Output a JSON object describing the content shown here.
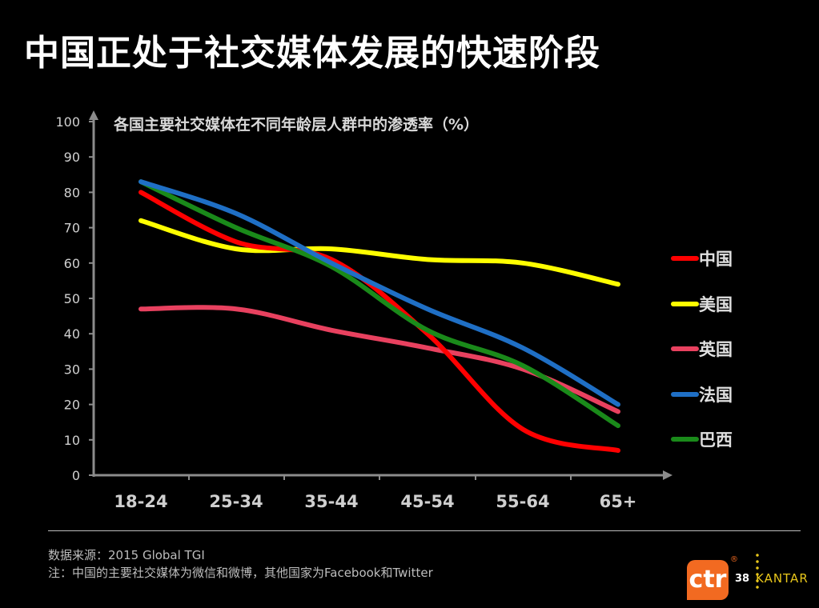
{
  "slide": {
    "title": "中国正处于社交媒体发展的快速阶段",
    "page_number": "38"
  },
  "chart_data": {
    "type": "line",
    "title": "各国主要社交媒体在不同年龄层人群中的渗透率（%）",
    "categories": [
      "18-24",
      "25-34",
      "35-44",
      "45-54",
      "55-64",
      "65+"
    ],
    "ylim": [
      0,
      100
    ],
    "yticks": [
      0,
      10,
      20,
      30,
      40,
      50,
      60,
      70,
      80,
      90,
      100
    ],
    "grid": false,
    "legend_position": "right",
    "series": [
      {
        "name": "中国",
        "color": "#ff0000",
        "values": [
          80,
          66,
          61,
          40,
          13,
          7
        ]
      },
      {
        "name": "美国",
        "color": "#ffff00",
        "values": [
          72,
          64,
          64,
          61,
          60,
          54
        ]
      },
      {
        "name": "英国",
        "color": "#e8415f",
        "values": [
          47,
          47,
          41,
          36,
          30,
          18
        ]
      },
      {
        "name": "法国",
        "color": "#1f6fc5",
        "values": [
          83,
          74,
          60,
          47,
          36,
          20
        ]
      },
      {
        "name": "巴西",
        "color": "#1a8a1a",
        "values": [
          83,
          70,
          59,
          41,
          31,
          14
        ]
      }
    ]
  },
  "footer": {
    "source": "数据来源：2015 Global TGI",
    "note": "注：中国的主要社交媒体为微信和微博，其他国家为Facebook和Twitter"
  },
  "logos": {
    "ctr": "ctr",
    "kantar": "KANTAR",
    "ctr_color": "#f26a21",
    "kantar_color": "#e8c61b"
  }
}
